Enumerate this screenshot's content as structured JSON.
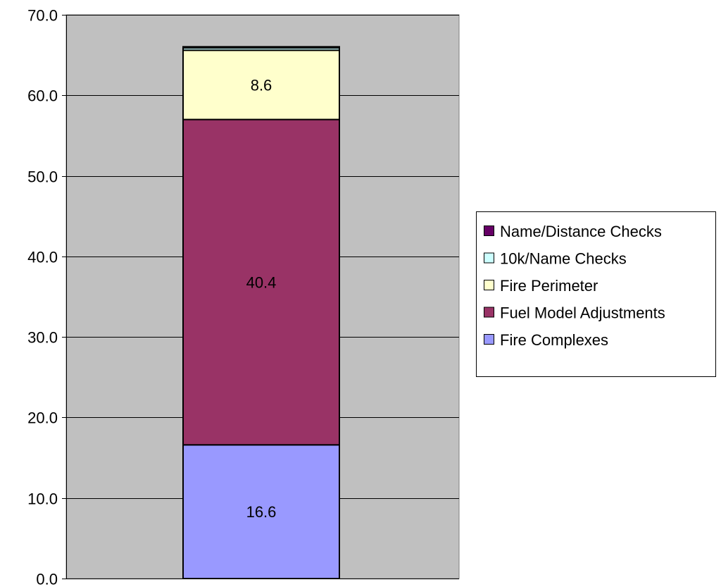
{
  "chart_data": {
    "type": "bar",
    "stacked": true,
    "title": "",
    "xlabel": "",
    "ylabel": "",
    "categories": [
      ""
    ],
    "ylim": [
      0,
      70
    ],
    "yticks": [
      0,
      10,
      20,
      30,
      40,
      50,
      60,
      70
    ],
    "ytick_labels": [
      "0.0",
      "10.0",
      "20.0",
      "30.0",
      "40.0",
      "50.0",
      "60.0",
      "70.0"
    ],
    "grid": true,
    "legend_position": "right",
    "series": [
      {
        "name": "Fire Complexes",
        "values": [
          16.6
        ],
        "data_label": "16.6",
        "color": "#9999ff"
      },
      {
        "name": "Fuel Model Adjustments",
        "values": [
          40.4
        ],
        "data_label": "40.4",
        "color": "#993366"
      },
      {
        "name": "Fire Perimeter",
        "values": [
          8.6
        ],
        "data_label": "8.6",
        "color": "#ffffcc"
      },
      {
        "name": "10k/Name Checks",
        "values": [
          0.3
        ],
        "data_label": "",
        "color": "#ccffff"
      },
      {
        "name": "Name/Distance Checks",
        "values": [
          0.05
        ],
        "data_label": "",
        "color": "#660066"
      }
    ],
    "plot_background": "#c0c0c0"
  }
}
